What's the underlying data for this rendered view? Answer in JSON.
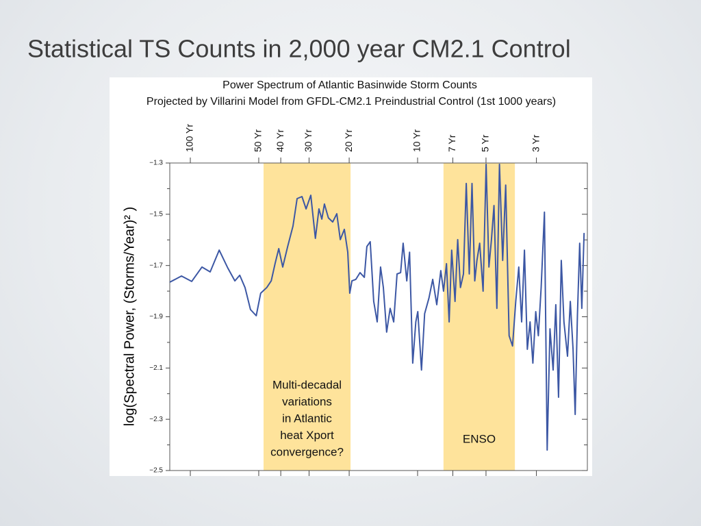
{
  "slide_title": "Statistical TS Counts in 2,000 year CM2.1 Control",
  "chart_data": {
    "type": "line",
    "title": [
      "Power Spectrum of Atlantic Basinwide Storm Counts",
      "Projected by Villarini Model from GFDL-CM2.1 Preindustrial Control (1st 1000 years)"
    ],
    "ylabel": "log(Spectral Power, (Storms/Year)² )",
    "xscale": "log",
    "xlim": [
      0.00812,
      0.5585
    ],
    "xticks": [
      {
        "value": 0.01,
        "label": "100 Yr"
      },
      {
        "value": 0.02,
        "label": "50 Yr"
      },
      {
        "value": 0.025,
        "label": "40 Yr"
      },
      {
        "value": 0.0333,
        "label": "30 Yr"
      },
      {
        "value": 0.05,
        "label": "20 Yr"
      },
      {
        "value": 0.1,
        "label": "10 Yr"
      },
      {
        "value": 0.1429,
        "label": "7 Yr"
      },
      {
        "value": 0.2,
        "label": "5 Yr"
      },
      {
        "value": 0.3333,
        "label": "3 Yr"
      }
    ],
    "ylim": [
      -2.5,
      -1.3
    ],
    "yticks": [
      {
        "value": -1.3,
        "label": "−1.3"
      },
      {
        "value": -1.5,
        "label": "−1.5"
      },
      {
        "value": -1.7,
        "label": "−1.7"
      },
      {
        "value": -1.9,
        "label": "−1.9"
      },
      {
        "value": -2.1,
        "label": "−2.1"
      },
      {
        "value": -2.3,
        "label": "−2.3"
      },
      {
        "value": -2.5,
        "label": "−2.5"
      }
    ],
    "color": "#3c57a4",
    "bands": [
      {
        "range": [
          0.021,
          0.0507
        ],
        "color": "#fee39b",
        "label": [
          "Multi-decadal",
          "variations",
          "in Atlantic",
          "heat Xport",
          "convergence?"
        ]
      },
      {
        "range": [
          0.13,
          0.268
        ],
        "color": "#fee39b",
        "label": [
          "ENSO"
        ]
      }
    ],
    "x": [
      0.00812,
      0.00914,
      0.01014,
      0.01125,
      0.01223,
      0.0134,
      0.0146,
      0.0157,
      0.0165,
      0.0174,
      0.0184,
      0.0195,
      0.0204,
      0.0217,
      0.0227,
      0.0236,
      0.0245,
      0.0255,
      0.0268,
      0.0283,
      0.0295,
      0.031,
      0.0323,
      0.0339,
      0.0355,
      0.0368,
      0.0379,
      0.0389,
      0.0405,
      0.0423,
      0.0441,
      0.0457,
      0.0476,
      0.0493,
      0.0503,
      0.0514,
      0.0535,
      0.0558,
      0.0583,
      0.0598,
      0.0619,
      0.0641,
      0.0664,
      0.0687,
      0.0707,
      0.0731,
      0.0757,
      0.0785,
      0.0812,
      0.0842,
      0.0864,
      0.0896,
      0.0922,
      0.0952,
      0.0982,
      0.1002,
      0.104,
      0.1074,
      0.1122,
      0.1166,
      0.1214,
      0.1265,
      0.1301,
      0.134,
      0.1377,
      0.1413,
      0.1461,
      0.1501,
      0.1544,
      0.1591,
      0.1637,
      0.1688,
      0.1736,
      0.1785,
      0.1824,
      0.1876,
      0.1942,
      0.2002,
      0.206,
      0.2114,
      0.2168,
      0.2232,
      0.2292,
      0.2368,
      0.2441,
      0.2527,
      0.2616,
      0.2703,
      0.2788,
      0.287,
      0.2952,
      0.3039,
      0.3125,
      0.3215,
      0.3311,
      0.3399,
      0.3496,
      0.3616,
      0.3717,
      0.3823,
      0.3949,
      0.4057,
      0.4171,
      0.4288,
      0.4406,
      0.4567,
      0.47,
      0.4832,
      0.4938,
      0.5049,
      0.5167,
      0.528,
      0.5403
    ],
    "values": [
      -1.765,
      -1.741,
      -1.762,
      -1.706,
      -1.725,
      -1.64,
      -1.709,
      -1.76,
      -1.738,
      -1.786,
      -1.872,
      -1.896,
      -1.808,
      -1.786,
      -1.76,
      -1.693,
      -1.634,
      -1.706,
      -1.626,
      -1.546,
      -1.439,
      -1.431,
      -1.479,
      -1.426,
      -1.594,
      -1.479,
      -1.519,
      -1.46,
      -1.514,
      -1.53,
      -1.498,
      -1.599,
      -1.559,
      -1.648,
      -1.808,
      -1.76,
      -1.754,
      -1.728,
      -1.746,
      -1.626,
      -1.607,
      -1.84,
      -1.92,
      -1.706,
      -1.786,
      -1.96,
      -1.867,
      -1.92,
      -1.733,
      -1.728,
      -1.613,
      -1.76,
      -1.648,
      -2.081,
      -1.92,
      -1.88,
      -2.108,
      -1.888,
      -1.827,
      -1.754,
      -1.853,
      -1.72,
      -1.8,
      -1.693,
      -1.92,
      -1.64,
      -1.84,
      -1.599,
      -1.786,
      -1.733,
      -1.38,
      -1.733,
      -1.38,
      -1.76,
      -1.68,
      -1.613,
      -1.8,
      -1.305,
      -1.706,
      -1.599,
      -1.466,
      -1.867,
      -1.305,
      -1.68,
      -1.386,
      -1.974,
      -2.014,
      -1.84,
      -1.706,
      -1.92,
      -1.64,
      -2.027,
      -1.92,
      -2.081,
      -1.88,
      -1.974,
      -1.786,
      -1.492,
      -2.42,
      -1.947,
      -2.108,
      -1.853,
      -2.214,
      -1.68,
      -1.92,
      -2.054,
      -1.84,
      -2.027,
      -2.281,
      -1.893,
      -1.613,
      -1.867,
      -1.573
    ]
  }
}
